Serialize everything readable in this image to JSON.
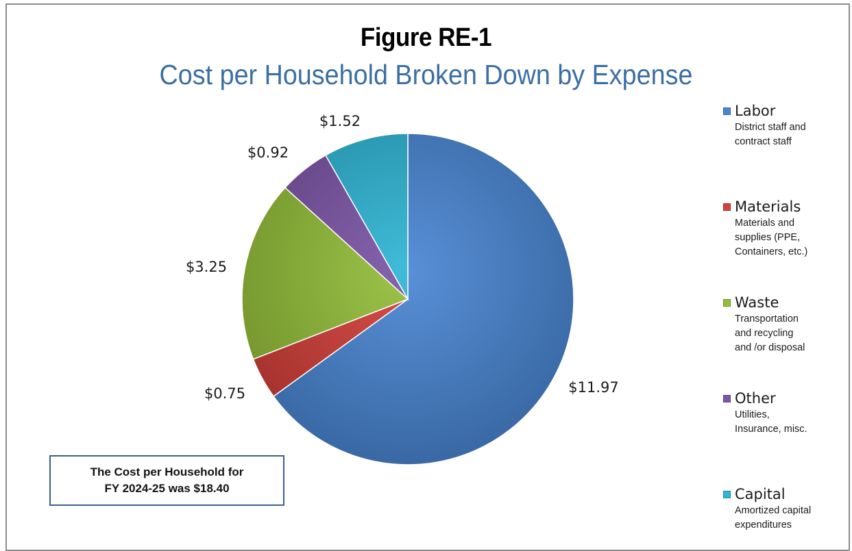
{
  "figure": {
    "title": "Figure RE-1",
    "subtitle": "Cost per Household Broken Down by Expense"
  },
  "chart_data": {
    "type": "pie",
    "title": "Cost per Household Broken Down by Expense",
    "legend_position": "right",
    "slices": [
      {
        "name": "Labor",
        "value": 11.97,
        "label": "$11.97",
        "color": "#4a86d4"
      },
      {
        "name": "Materials",
        "value": 0.75,
        "label": "$0.75",
        "color": "#d4403a"
      },
      {
        "name": "Waste",
        "value": 3.25,
        "label": "$3.25",
        "color": "#95bf3a"
      },
      {
        "name": "Other",
        "value": 0.92,
        "label": "$0.92",
        "color": "#7d56a8"
      },
      {
        "name": "Capital",
        "value": 1.52,
        "label": "$1.52",
        "color": "#2fb6d6"
      }
    ]
  },
  "legend": {
    "items": [
      {
        "name": "Labor",
        "desc": "District staff and\ncontract staff",
        "color": "#4a86d4"
      },
      {
        "name": "Materials",
        "desc": "Materials and\nsupplies (PPE,\nContainers, etc.)",
        "color": "#d4403a"
      },
      {
        "name": "Waste",
        "desc": "Transportation\n and recycling\nand /or disposal",
        "color": "#95bf3a"
      },
      {
        "name": "Other",
        "desc": "Utilities,\nInsurance, misc.",
        "color": "#7d56a8"
      },
      {
        "name": "Capital",
        "desc": "Amortized capital\nexpenditures",
        "color": "#2fb6d6"
      }
    ]
  },
  "note": {
    "line1": "The Cost per Household for",
    "line2": "FY 2024-25 was $18.40"
  }
}
